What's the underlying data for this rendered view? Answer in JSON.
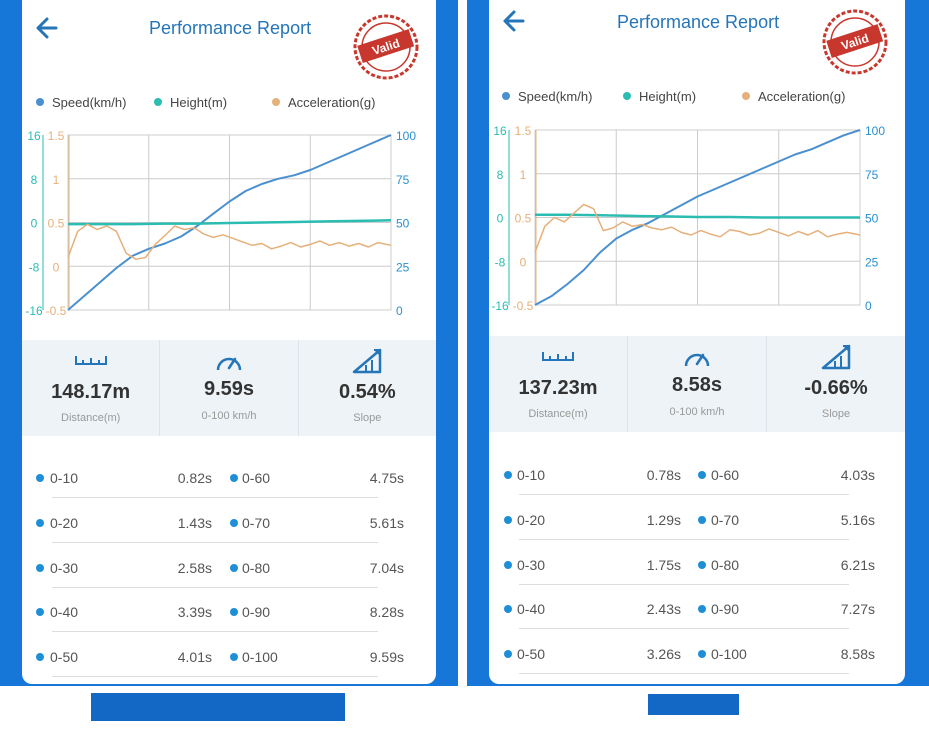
{
  "colors": {
    "frame": "#1677d9",
    "speed": "#4a90d0",
    "height": "#2bbcb2",
    "acceleration": "#e5b07a",
    "title": "#2575b9",
    "dot": "#1e8fd7",
    "stamp": "#c8372d"
  },
  "panels": [
    {
      "title": "Performance Report",
      "stamp_text": "Valid",
      "legend": [
        {
          "label": "Speed(km/h)",
          "color": "#4a90d0"
        },
        {
          "label": "Height(m)",
          "color": "#2bbcb2"
        },
        {
          "label": "Acceleration(g)",
          "color": "#e5b07a"
        }
      ],
      "chart_data": {
        "type": "line",
        "axes": {
          "height_ticks": [
            "16",
            "8",
            "0",
            "-8",
            "-16"
          ],
          "accel_ticks": [
            "1.5",
            "1",
            "0.5",
            "0",
            "-0.5"
          ],
          "speed_ticks": [
            "100",
            "75",
            "50",
            "25",
            "0"
          ],
          "speed_range": [
            0,
            100
          ],
          "height_range": [
            -16,
            16
          ],
          "accel_range": [
            -0.5,
            1.5
          ]
        },
        "grid": true,
        "series": [
          {
            "name": "Speed(km/h)",
            "x": [
              0,
              5,
              10,
              15,
              20,
              25,
              30,
              35,
              40,
              45,
              50,
              55,
              60,
              65,
              70,
              75,
              80,
              85,
              90,
              95,
              100
            ],
            "values": [
              0,
              8,
              16,
              24,
              31,
              35,
              38,
              42,
              48,
              55,
              62,
              68,
              72,
              75,
              77,
              80,
              84,
              88,
              92,
              96,
              100
            ]
          },
          {
            "name": "Height(m)",
            "x": [
              0,
              10,
              20,
              30,
              40,
              50,
              60,
              70,
              80,
              90,
              100
            ],
            "values": [
              -0.3,
              -0.3,
              -0.3,
              -0.2,
              -0.2,
              -0.1,
              0,
              0.1,
              0.2,
              0.3,
              0.4
            ]
          },
          {
            "name": "Acceleration(g)",
            "x": [
              0,
              3,
              6,
              9,
              12,
              15,
              18,
              21,
              24,
              27,
              30,
              33,
              36,
              39,
              42,
              45,
              48,
              51,
              54,
              57,
              60,
              63,
              66,
              69,
              72,
              75,
              78,
              81,
              84,
              87,
              90,
              93,
              96,
              100
            ],
            "values": [
              0.1,
              0.4,
              0.48,
              0.42,
              0.46,
              0.4,
              0.15,
              0.08,
              0.1,
              0.25,
              0.35,
              0.46,
              0.42,
              0.44,
              0.37,
              0.33,
              0.36,
              0.32,
              0.28,
              0.24,
              0.26,
              0.2,
              0.23,
              0.27,
              0.22,
              0.25,
              0.29,
              0.24,
              0.27,
              0.23,
              0.26,
              0.22,
              0.27,
              0.24
            ]
          }
        ]
      },
      "stats": [
        {
          "icon": "ruler-icon",
          "value": "148.17m",
          "label": "Distance(m)"
        },
        {
          "icon": "speedometer-icon",
          "value": "9.59s",
          "label": "0-100 km/h"
        },
        {
          "icon": "slope-icon",
          "value": "0.54%",
          "label": "Slope"
        }
      ],
      "splits": [
        {
          "left_name": "0-10",
          "left_time": "0.82s",
          "right_name": "0-60",
          "right_time": "4.75s"
        },
        {
          "left_name": "0-20",
          "left_time": "1.43s",
          "right_name": "0-70",
          "right_time": "5.61s"
        },
        {
          "left_name": "0-30",
          "left_time": "2.58s",
          "right_name": "0-80",
          "right_time": "7.04s"
        },
        {
          "left_name": "0-40",
          "left_time": "3.39s",
          "right_name": "0-90",
          "right_time": "8.28s"
        },
        {
          "left_name": "0-50",
          "left_time": "4.01s",
          "right_name": "0-100",
          "right_time": "9.59s"
        }
      ]
    },
    {
      "title": "Performance Report",
      "stamp_text": "Valid",
      "legend": [
        {
          "label": "Speed(km/h)",
          "color": "#4a90d0"
        },
        {
          "label": "Height(m)",
          "color": "#2bbcb2"
        },
        {
          "label": "Acceleration(g)",
          "color": "#e5b07a"
        }
      ],
      "chart_data": {
        "type": "line",
        "axes": {
          "height_ticks": [
            "16",
            "8",
            "0",
            "-8",
            "-16"
          ],
          "accel_ticks": [
            "1.5",
            "1",
            "0.5",
            "0",
            "-0.5"
          ],
          "speed_ticks": [
            "100",
            "75",
            "50",
            "25",
            "0"
          ],
          "speed_range": [
            0,
            100
          ],
          "height_range": [
            -16,
            16
          ],
          "accel_range": [
            -0.5,
            1.5
          ]
        },
        "grid": true,
        "series": [
          {
            "name": "Speed(km/h)",
            "x": [
              0,
              5,
              10,
              15,
              20,
              25,
              30,
              35,
              40,
              45,
              50,
              55,
              60,
              65,
              70,
              75,
              80,
              85,
              90,
              95,
              100
            ],
            "values": [
              0,
              5,
              12,
              20,
              30,
              38,
              43,
              47,
              52,
              57,
              62,
              66,
              70,
              74,
              78,
              82,
              86,
              89,
              93,
              97,
              100
            ]
          },
          {
            "name": "Height(m)",
            "x": [
              0,
              10,
              20,
              30,
              40,
              50,
              60,
              70,
              80,
              90,
              100
            ],
            "values": [
              0.5,
              0.5,
              0.4,
              0.3,
              0.2,
              0.1,
              0.1,
              0,
              0,
              0,
              0
            ]
          },
          {
            "name": "Acceleration(g)",
            "x": [
              0,
              3,
              6,
              9,
              12,
              15,
              18,
              21,
              24,
              27,
              30,
              33,
              36,
              39,
              42,
              45,
              48,
              51,
              54,
              57,
              60,
              63,
              66,
              69,
              72,
              75,
              78,
              81,
              84,
              87,
              90,
              93,
              96,
              100
            ],
            "values": [
              0.1,
              0.4,
              0.5,
              0.45,
              0.55,
              0.65,
              0.6,
              0.35,
              0.38,
              0.45,
              0.4,
              0.42,
              0.38,
              0.36,
              0.39,
              0.33,
              0.3,
              0.35,
              0.31,
              0.28,
              0.36,
              0.34,
              0.3,
              0.32,
              0.37,
              0.33,
              0.29,
              0.34,
              0.3,
              0.35,
              0.28,
              0.31,
              0.33,
              0.3
            ]
          }
        ]
      },
      "stats": [
        {
          "icon": "ruler-icon",
          "value": "137.23m",
          "label": "Distance(m)"
        },
        {
          "icon": "speedometer-icon",
          "value": "8.58s",
          "label": "0-100 km/h"
        },
        {
          "icon": "slope-icon",
          "value": "-0.66%",
          "label": "Slope"
        }
      ],
      "splits": [
        {
          "left_name": "0-10",
          "left_time": "0.78s",
          "right_name": "0-60",
          "right_time": "4.03s"
        },
        {
          "left_name": "0-20",
          "left_time": "1.29s",
          "right_name": "0-70",
          "right_time": "5.16s"
        },
        {
          "left_name": "0-30",
          "left_time": "1.75s",
          "right_name": "0-80",
          "right_time": "6.21s"
        },
        {
          "left_name": "0-40",
          "left_time": "2.43s",
          "right_name": "0-90",
          "right_time": "7.27s"
        },
        {
          "left_name": "0-50",
          "left_time": "3.26s",
          "right_name": "0-100",
          "right_time": "8.58s"
        }
      ]
    }
  ]
}
